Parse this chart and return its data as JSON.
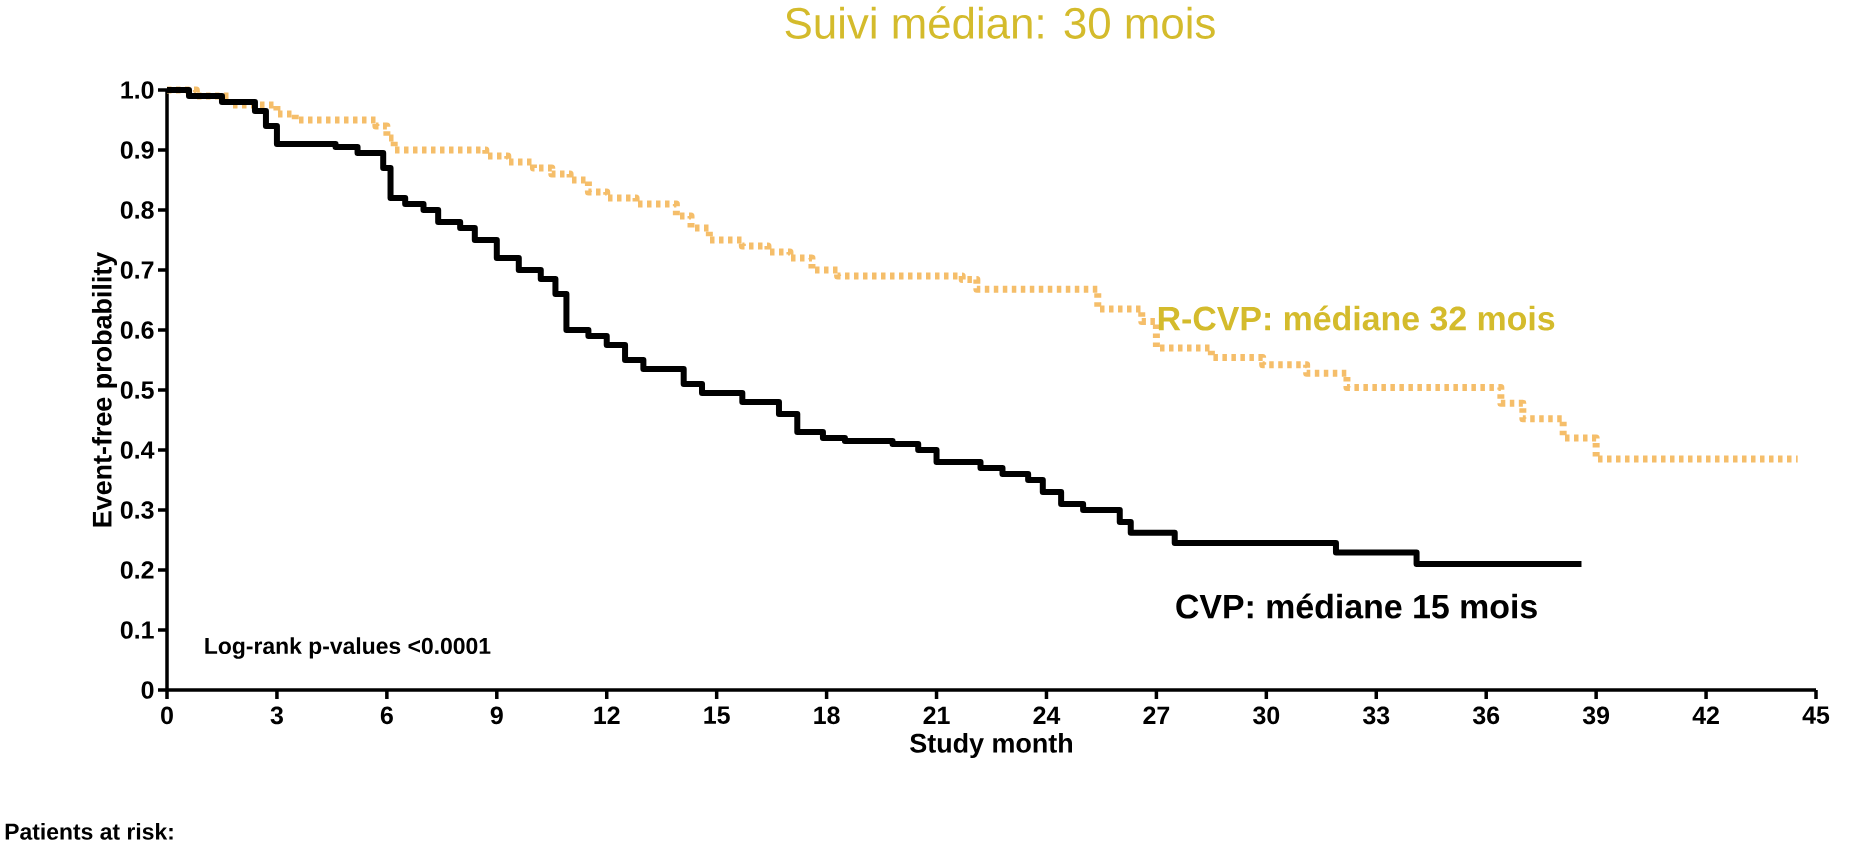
{
  "chart_data": {
    "type": "step",
    "title": "Suivi médian: 30 mois",
    "xlabel": "Study month",
    "ylabel": "Event-free probability",
    "xlim": [
      0,
      45
    ],
    "xticks": [
      0,
      3,
      6,
      9,
      12,
      15,
      18,
      21,
      24,
      27,
      30,
      33,
      36,
      39,
      42,
      45
    ],
    "ylim": [
      0,
      1
    ],
    "yticks": [
      0,
      0.1,
      0.2,
      0.3,
      0.4,
      0.5,
      0.6,
      0.7,
      0.8,
      0.9,
      {
        "value": 1,
        "label": "1.0"
      }
    ],
    "grid": false,
    "legend": false,
    "annotations": [
      "Log-rank p-values <0.0001",
      "Patients at risk:"
    ],
    "series": [
      {
        "name": "R-CVP: médiane 32 mois",
        "color": "#f5be6a",
        "line_style": "dotted",
        "x": [
          0,
          0.8,
          1.7,
          3.0,
          3.5,
          5.7,
          6.0,
          6.2,
          8.7,
          9.3,
          10.0,
          10.5,
          11.0,
          11.5,
          12.0,
          12.8,
          13.9,
          14.3,
          14.8,
          15.7,
          16.4,
          17.0,
          17.6,
          18.3,
          21.7,
          22.1,
          24.8,
          25.4,
          26.6,
          27.0,
          28.5,
          29.9,
          31.1,
          32.2,
          36.4,
          37.0,
          38.1,
          39.0,
          44.5
        ],
        "values": [
          1.0,
          0.99,
          0.975,
          0.96,
          0.95,
          0.94,
          0.92,
          0.9,
          0.89,
          0.88,
          0.87,
          0.86,
          0.85,
          0.83,
          0.82,
          0.81,
          0.79,
          0.77,
          0.75,
          0.74,
          0.73,
          0.72,
          0.7,
          0.69,
          0.684,
          0.668,
          0.668,
          0.635,
          0.614,
          0.57,
          0.554,
          0.542,
          0.528,
          0.504,
          0.478,
          0.452,
          0.42,
          0.385,
          0.385
        ]
      },
      {
        "name": "CVP: médiane 15 mois",
        "color": "#000000",
        "line_style": "solid",
        "x": [
          0,
          0.6,
          1.5,
          2.4,
          2.7,
          3.0,
          4.6,
          5.2,
          5.9,
          6.1,
          6.5,
          7.0,
          7.4,
          8.0,
          8.4,
          9.0,
          9.6,
          10.2,
          10.6,
          10.9,
          11.5,
          12.0,
          12.5,
          13.0,
          14.1,
          14.6,
          15.7,
          16.7,
          17.2,
          17.9,
          18.5,
          19.8,
          20.5,
          21.0,
          22.2,
          22.8,
          23.5,
          23.9,
          24.4,
          25.0,
          26.0,
          26.3,
          27.5,
          31.9,
          34.1,
          38.6
        ],
        "values": [
          1.0,
          0.99,
          0.98,
          0.965,
          0.94,
          0.91,
          0.905,
          0.895,
          0.87,
          0.82,
          0.81,
          0.8,
          0.78,
          0.77,
          0.75,
          0.72,
          0.7,
          0.685,
          0.66,
          0.6,
          0.59,
          0.575,
          0.55,
          0.535,
          0.51,
          0.495,
          0.48,
          0.46,
          0.43,
          0.42,
          0.415,
          0.41,
          0.4,
          0.38,
          0.37,
          0.36,
          0.35,
          0.33,
          0.31,
          0.3,
          0.28,
          0.262,
          0.245,
          0.229,
          0.21,
          0.21
        ]
      }
    ]
  }
}
